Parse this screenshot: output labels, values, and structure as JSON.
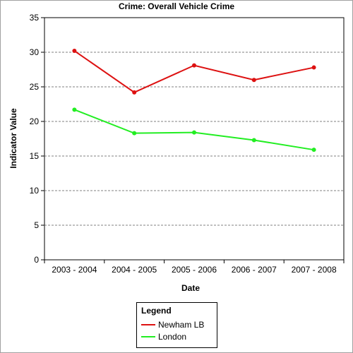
{
  "chart_data": {
    "type": "line",
    "title": "Crime: Overall Vehicle Crime",
    "xlabel": "Date",
    "ylabel": "Indicator Value",
    "categories": [
      "2003 - 2004",
      "2004 - 2005",
      "2005 - 2006",
      "2006 - 2007",
      "2007 - 2008"
    ],
    "ylim": [
      0,
      35
    ],
    "yticks": [
      0,
      5,
      10,
      15,
      20,
      25,
      30,
      35
    ],
    "grid": true,
    "legend_position": "bottom",
    "legend_title": "Legend",
    "series": [
      {
        "name": "Newham LB",
        "color": "#dd1111",
        "values": [
          30.2,
          24.2,
          28.1,
          26.0,
          27.8
        ]
      },
      {
        "name": "London",
        "color": "#22ee22",
        "values": [
          21.7,
          18.3,
          18.4,
          17.3,
          15.9
        ]
      }
    ]
  }
}
